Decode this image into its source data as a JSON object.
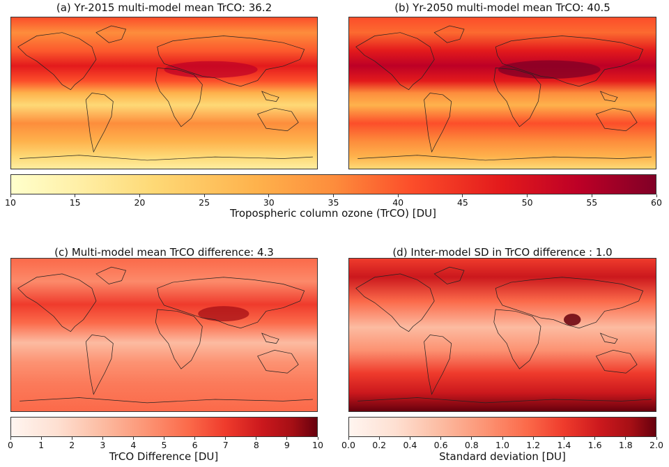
{
  "panels": {
    "a": {
      "title": "(a) Yr-2015 multi-model mean TrCO: 36.2"
    },
    "b": {
      "title": "(b) Yr-2050 multi-model mean TrCO: 40.5"
    },
    "c": {
      "title": "(c) Multi-model mean TrCO difference: 4.3"
    },
    "d": {
      "title": "(d) Inter-model SD in TrCO difference : 1.0"
    }
  },
  "colorbars": {
    "top": {
      "label": "Tropospheric column ozone (TrCO) [DU]",
      "ticks": [
        "10",
        "15",
        "20",
        "25",
        "30",
        "35",
        "40",
        "45",
        "50",
        "55",
        "60"
      ]
    },
    "c": {
      "label": "TrCO Difference [DU]",
      "ticks": [
        "0",
        "1",
        "2",
        "3",
        "4",
        "5",
        "6",
        "7",
        "8",
        "9",
        "10"
      ]
    },
    "d": {
      "label": "Standard deviation [DU]",
      "ticks": [
        "0.0",
        "0.2",
        "0.4",
        "0.6",
        "0.8",
        "1.0",
        "1.2",
        "1.4",
        "1.6",
        "1.8",
        "2.0"
      ]
    }
  },
  "colors": {
    "ylorrd": [
      "#ffffcc",
      "#fed976",
      "#feb24c",
      "#fd8d3c",
      "#fc4e2a",
      "#e31a1c",
      "#bd0026",
      "#800026"
    ],
    "reds": [
      "#fff5f0",
      "#fee0d2",
      "#fcbba1",
      "#fc9272",
      "#fb6a4a",
      "#ef3b2c",
      "#cb181d",
      "#a50f15",
      "#67000d"
    ],
    "coastline": "#222222"
  }
}
